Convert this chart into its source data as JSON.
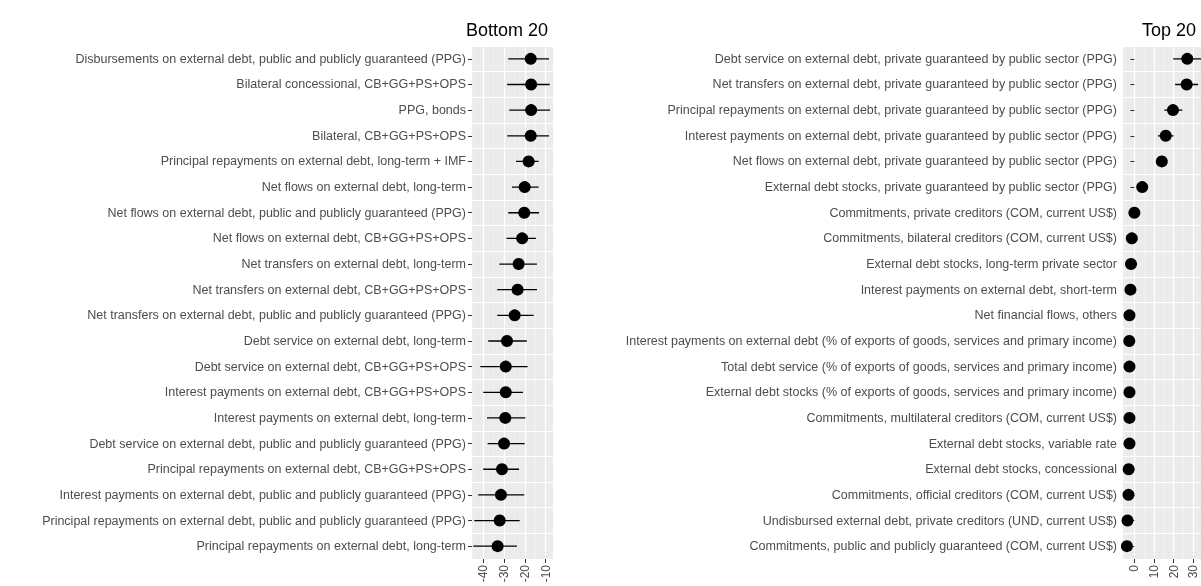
{
  "chart_data": [
    {
      "type": "scatter",
      "orientation": "horizontal",
      "title": "Bottom 20",
      "color": "#000000",
      "grid": true,
      "marker": "circle",
      "categories": [
        "Disbursements on external debt, public and publicly guaranteed (PPG)",
        "Bilateral concessional, CB+GG+PS+OPS",
        "PPG, bonds",
        "Bilateral, CB+GG+PS+OPS",
        "Principal repayments on external debt, long-term + IMF",
        "Net flows on external debt, long-term",
        "Net flows on external debt, public and publicly guaranteed (PPG)",
        "Net flows on external debt, CB+GG+PS+OPS",
        "Net transfers on external debt, long-term",
        "Net transfers on external debt, CB+GG+PS+OPS",
        "Net transfers on external debt, public and publicly guaranteed (PPG)",
        "Debt service on external debt, long-term",
        "Debt service on external debt, CB+GG+PS+OPS",
        "Interest payments on external debt, CB+GG+PS+OPS",
        "Interest payments on external debt, long-term",
        "Debt service on external debt, public and publicly guaranteed (PPG)",
        "Principal repayments on external debt, CB+GG+PS+OPS",
        "Interest payments on external debt, public and publicly guaranteed (PPG)",
        "Principal repayments on external debt, public and publicly guaranteed (PPG)",
        "Principal repayments on external debt, long-term"
      ],
      "values": [
        -17.2,
        -17,
        -17,
        -17.2,
        -18.2,
        -20.1,
        -20.3,
        -21.3,
        -23,
        -23.5,
        -24.9,
        -28.6,
        -29.2,
        -29.2,
        -29.4,
        -30,
        -31,
        -31.5,
        -32.1,
        -33.1
      ],
      "errors": [
        [
          -28,
          -8.4
        ],
        [
          -28.5,
          -8.1
        ],
        [
          -27.5,
          -7.9
        ],
        [
          -28.5,
          -8.4
        ],
        [
          -24.3,
          -13.4
        ],
        [
          -26.2,
          -13.4
        ],
        [
          -28,
          -13.2
        ],
        [
          -28.8,
          -14.7
        ],
        [
          -32.3,
          -14.2
        ],
        [
          -33.3,
          -14.2
        ],
        [
          -33.3,
          -15.8
        ],
        [
          -37.6,
          -19.1
        ],
        [
          -41.4,
          -18.7
        ],
        [
          -40,
          -20.9
        ],
        [
          -38.2,
          -19.8
        ],
        [
          -37.9,
          -20.1
        ],
        [
          -40,
          -22.8
        ],
        [
          -42.4,
          -20.3
        ],
        [
          -44.3,
          -22.5
        ],
        [
          -44.8,
          -23.8
        ]
      ],
      "xlim": [
        -45.4,
        -6.5
      ],
      "xticks": [
        -40,
        -30,
        -20,
        -10
      ]
    },
    {
      "type": "scatter",
      "orientation": "horizontal",
      "title": "Top 20",
      "color": "#000000",
      "grid": true,
      "marker": "circle",
      "categories": [
        "Debt service on external debt, private guaranteed by public sector (PPG)",
        "Net transfers on external debt, private guaranteed by public sector (PPG)",
        "Principal repayments on external debt, private guaranteed by public sector (PPG)",
        "Interest payments on external debt, private guaranteed by public sector (PPG)",
        "Net flows on external debt, private guaranteed by public sector (PPG)",
        "External debt stocks, private guaranteed by public sector (PPG)",
        "Commitments, private creditors (COM, current US$)",
        "Commitments, bilateral creditors (COM, current US$)",
        "External debt stocks, long-term private sector",
        "Interest payments on external debt, short-term",
        "Net financial flows, others",
        "Interest payments on external debt (% of exports of goods, services and primary income)",
        "Total debt service (% of exports of goods, services and primary income)",
        "External debt stocks (% of exports of goods, services and primary income)",
        "Commitments, multilateral creditors (COM, current US$)",
        "External debt stocks, variable rate",
        "External debt stocks, concessional",
        "Commitments, official creditors (COM, current US$)",
        "Undisbursed external debt, private creditors (UND, current US$)",
        "Commitments, public and publicly guaranteed (COM, current US$)"
      ],
      "values": [
        27,
        26.7,
        19.7,
        16,
        14,
        4,
        0,
        -1.3,
        -1.7,
        -2,
        -2.5,
        -2.6,
        -2.5,
        -2.5,
        -2.5,
        -2.5,
        -2.9,
        -3,
        -3.5,
        -3.8
      ],
      "errors": [
        [
          19.8,
          34
        ],
        [
          20.8,
          32.5
        ],
        [
          15.3,
          24.5
        ],
        [
          12,
          20
        ],
        null,
        null,
        null,
        null,
        null,
        null,
        null,
        null,
        null,
        null,
        null,
        null,
        null,
        null,
        null,
        null
      ],
      "xlim": [
        -5.8,
        34
      ],
      "xticks": [
        0,
        10,
        20,
        30
      ]
    }
  ]
}
